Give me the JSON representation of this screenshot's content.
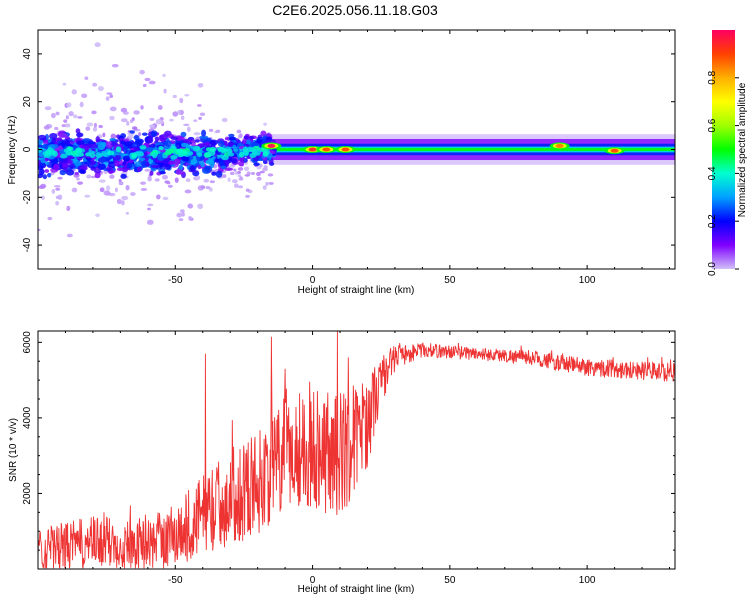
{
  "figure": {
    "title": "C2E6.2025.056.11.18.G03"
  },
  "chart_data": [
    {
      "type": "heatmap",
      "xlabel": "Height of straight line (km)",
      "ylabel": "Frequency (Hz)",
      "xlim": [
        -100,
        132
      ],
      "ylim": [
        -50,
        50
      ],
      "xticks": [
        -50,
        0,
        50,
        100
      ],
      "yticks": [
        -40,
        -20,
        0,
        20,
        40
      ],
      "grid": false,
      "colorbar": {
        "label": "Normalized spectral amplitude",
        "range": [
          0,
          1
        ],
        "ticks": [
          0.0,
          0.2,
          0.4,
          0.6,
          0.8
        ],
        "tick_labels": [
          "0.0",
          "0.2",
          "0.4",
          "0.6",
          "0.8"
        ],
        "colormap": [
          "#d0c0f8",
          "#8000ff",
          "#0000ff",
          "#00a0ff",
          "#00ffd0",
          "#00ff00",
          "#a0ff00",
          "#ffff00",
          "#ffb000",
          "#ff4000",
          "#ff0060"
        ]
      },
      "bands": [
        {
          "x0": -100,
          "x1": -30,
          "center_hz": -2,
          "halfwidth_hz": 9,
          "scatter": true
        },
        {
          "x0": -30,
          "x1": -15,
          "center_hz": 0,
          "halfwidth_hz": 6,
          "scatter": true
        },
        {
          "x0": -15,
          "x1": 132,
          "center_hz": 0,
          "halfwidth_hz": 4,
          "scatter": false
        }
      ],
      "hotspots": [
        {
          "x": -15,
          "y": 1.5,
          "amp": 1.0
        },
        {
          "x": 0,
          "y": 0,
          "amp": 0.95
        },
        {
          "x": 5,
          "y": 0,
          "amp": 0.9
        },
        {
          "x": 12,
          "y": 0,
          "amp": 0.9
        },
        {
          "x": 90,
          "y": 1.5,
          "amp": 0.85
        },
        {
          "x": 110,
          "y": -0.5,
          "amp": 0.9
        }
      ]
    },
    {
      "type": "line",
      "xlabel": "Height of straight line (km)",
      "ylabel": "SNR (10 * v/v)",
      "xlim": [
        -100,
        132
      ],
      "ylim": [
        0,
        6300
      ],
      "xticks": [
        -50,
        0,
        50,
        100
      ],
      "yticks": [
        2000,
        4000,
        6000
      ],
      "grid": false,
      "series": [
        {
          "color": "#ee3333",
          "envelope_x": [
            -100,
            -80,
            -60,
            -50,
            -40,
            -30,
            -20,
            -10,
            -5,
            0,
            10,
            20,
            25,
            30,
            35,
            40,
            50,
            60,
            70,
            80,
            90,
            100,
            110,
            120,
            132
          ],
          "envelope_mean": [
            500,
            700,
            650,
            900,
            1400,
            1900,
            2300,
            3000,
            3200,
            3300,
            3000,
            3900,
            5000,
            5600,
            5700,
            5800,
            5750,
            5700,
            5650,
            5600,
            5450,
            5350,
            5300,
            5250,
            5200
          ],
          "envelope_spread": [
            600,
            700,
            700,
            900,
            1100,
            1300,
            1400,
            1600,
            1600,
            1700,
            1700,
            1200,
            700,
            350,
            250,
            200,
            180,
            180,
            180,
            200,
            220,
            250,
            250,
            250,
            250
          ],
          "spikes": [
            {
              "x": -39,
              "y": 5700
            },
            {
              "x": -15,
              "y": 6150
            },
            {
              "x": -10,
              "y": 5300
            },
            {
              "x": 9,
              "y": 6300
            },
            {
              "x": 13,
              "y": 5600
            }
          ]
        }
      ]
    }
  ]
}
